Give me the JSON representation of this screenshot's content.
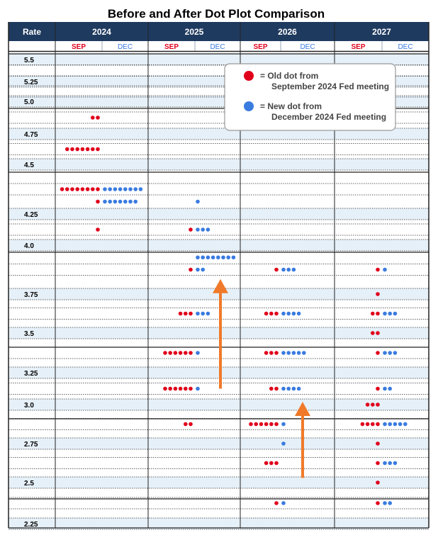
{
  "chart_data": {
    "type": "scatter",
    "title": "Before and After Dot Plot Comparison",
    "row_header": "Rate",
    "years": [
      "2024",
      "2025",
      "2026",
      "2027"
    ],
    "sub_labels": [
      "SEP",
      "DEC"
    ],
    "rate_labels": [
      "5.5",
      "5.25",
      "5.0",
      "4.75",
      "4.5",
      "4.25",
      "4.0",
      "3.75",
      "3.5",
      "3.25",
      "3.0",
      "2.75",
      "2.5",
      "2.25"
    ],
    "legend": {
      "placement": "top-right",
      "old": "= Old dot from September 2024 Fed meeting",
      "new": "= New dot from December 2024 Fed meeting"
    },
    "colors": {
      "header_bg": "#1f3a5f",
      "sep": "#e0001b",
      "dec": "#3a7be0",
      "band": "#e6f0f8",
      "arrow": "#f07a2a"
    },
    "series": [
      {
        "name": "SEP",
        "points": [
          {
            "year": "2024",
            "rate": 4.875,
            "count": 2
          },
          {
            "year": "2024",
            "rate": 4.625,
            "count": 7
          },
          {
            "year": "2024",
            "rate": 4.375,
            "count": 8
          },
          {
            "year": "2024",
            "rate": 4.3125,
            "count": 1
          },
          {
            "year": "2024",
            "rate": 4.125,
            "count": 1
          },
          {
            "year": "2025",
            "rate": 4.125,
            "count": 1
          },
          {
            "year": "2025",
            "rate": 3.875,
            "count": 1
          },
          {
            "year": "2025",
            "rate": 3.625,
            "count": 3
          },
          {
            "year": "2025",
            "rate": 3.375,
            "count": 6
          },
          {
            "year": "2025",
            "rate": 3.125,
            "count": 6
          },
          {
            "year": "2025",
            "rate": 2.875,
            "count": 2
          },
          {
            "year": "2026",
            "rate": 3.875,
            "count": 1
          },
          {
            "year": "2026",
            "rate": 3.625,
            "count": 3
          },
          {
            "year": "2026",
            "rate": 3.375,
            "count": 3
          },
          {
            "year": "2026",
            "rate": 3.125,
            "count": 2
          },
          {
            "year": "2026",
            "rate": 2.875,
            "count": 6
          },
          {
            "year": "2026",
            "rate": 2.625,
            "count": 3
          },
          {
            "year": "2026",
            "rate": 2.375,
            "count": 1
          },
          {
            "year": "2027",
            "rate": 3.875,
            "count": 1
          },
          {
            "year": "2027",
            "rate": 3.75,
            "count": 1
          },
          {
            "year": "2027",
            "rate": 3.625,
            "count": 2
          },
          {
            "year": "2027",
            "rate": 3.5,
            "count": 2
          },
          {
            "year": "2027",
            "rate": 3.375,
            "count": 1
          },
          {
            "year": "2027",
            "rate": 3.125,
            "count": 1
          },
          {
            "year": "2027",
            "rate": 3.0,
            "count": 3
          },
          {
            "year": "2027",
            "rate": 2.875,
            "count": 4
          },
          {
            "year": "2027",
            "rate": 2.75,
            "count": 1
          },
          {
            "year": "2027",
            "rate": 2.625,
            "count": 1
          },
          {
            "year": "2027",
            "rate": 2.5,
            "count": 1
          },
          {
            "year": "2027",
            "rate": 2.375,
            "count": 1
          }
        ]
      },
      {
        "name": "DEC",
        "points": [
          {
            "year": "2024",
            "rate": 4.375,
            "count": 8
          },
          {
            "year": "2024",
            "rate": 4.3125,
            "count": 7
          },
          {
            "year": "2025",
            "rate": 4.3125,
            "count": 1
          },
          {
            "year": "2025",
            "rate": 4.125,
            "count": 3
          },
          {
            "year": "2025",
            "rate": 3.9375,
            "count": 8
          },
          {
            "year": "2025",
            "rate": 3.875,
            "count": 2
          },
          {
            "year": "2025",
            "rate": 3.625,
            "count": 3
          },
          {
            "year": "2025",
            "rate": 3.375,
            "count": 1
          },
          {
            "year": "2025",
            "rate": 3.125,
            "count": 1
          },
          {
            "year": "2026",
            "rate": 3.875,
            "count": 3
          },
          {
            "year": "2026",
            "rate": 3.625,
            "count": 4
          },
          {
            "year": "2026",
            "rate": 3.375,
            "count": 5
          },
          {
            "year": "2026",
            "rate": 3.125,
            "count": 4
          },
          {
            "year": "2026",
            "rate": 2.875,
            "count": 1
          },
          {
            "year": "2026",
            "rate": 2.75,
            "count": 1
          },
          {
            "year": "2026",
            "rate": 2.375,
            "count": 1
          },
          {
            "year": "2027",
            "rate": 3.875,
            "count": 1
          },
          {
            "year": "2027",
            "rate": 3.625,
            "count": 3
          },
          {
            "year": "2027",
            "rate": 3.375,
            "count": 3
          },
          {
            "year": "2027",
            "rate": 3.125,
            "count": 2
          },
          {
            "year": "2027",
            "rate": 2.875,
            "count": 5
          },
          {
            "year": "2027",
            "rate": 2.625,
            "count": 3
          },
          {
            "year": "2027",
            "rate": 2.375,
            "count": 2
          }
        ]
      }
    ],
    "arrows": [
      {
        "year": "2025",
        "from_rate": 3.125,
        "to_rate": 3.8125
      },
      {
        "year": "2026",
        "from_rate": 2.53,
        "to_rate": 3.0
      }
    ]
  }
}
